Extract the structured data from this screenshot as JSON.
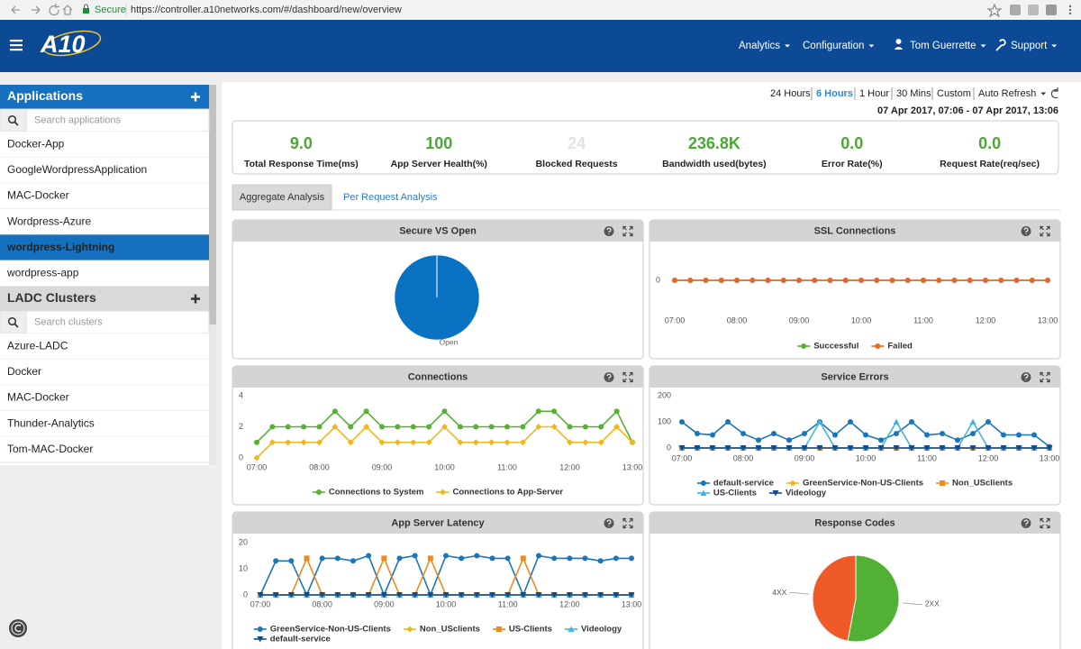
{
  "browser": {
    "secure": "Secure",
    "url": "https://controller.a10networks.com/#/dashboard/new/overview"
  },
  "nav": {
    "logo": "A10",
    "menu": [
      "Analytics",
      "Configuration",
      "Tom Guerrette",
      "Support"
    ]
  },
  "sidebar": {
    "applications": {
      "title": "Applications",
      "search": "Search applications",
      "selected": 4,
      "items": [
        "Docker-App",
        "GoogleWordpressApplication",
        "MAC-Docker",
        "Wordpress-Azure",
        "wordpress-Lightning",
        "wordpress-app"
      ]
    },
    "clusters": {
      "title": "LADC Clusters",
      "search": "Search clusters",
      "items": [
        "Azure-LADC",
        "Docker",
        "MAC-Docker",
        "Thunder-Analytics",
        "Tom-MAC-Docker"
      ]
    }
  },
  "time_range": {
    "options": [
      "24 Hours",
      "6 Hours",
      "1 Hour",
      "30 Mins",
      "Custom",
      "Auto Refresh"
    ],
    "active": 1,
    "range": "07 Apr 2017, 07:06 - 07 Apr 2017, 13:06"
  },
  "kpis": [
    {
      "value": "9.0",
      "label": "Total Response Time(ms)",
      "color": "#4aa834"
    },
    {
      "value": "100",
      "label": "App Server Health(%)",
      "color": "#4aa834"
    },
    {
      "value": "24",
      "label": "Blocked Requests",
      "color": "#e2e2e2"
    },
    {
      "value": "236.8K",
      "label": "Bandwidth used(bytes)",
      "color": "#4aa834"
    },
    {
      "value": "0.0",
      "label": "Error Rate(%)",
      "color": "#4aa834"
    },
    {
      "value": "0.0",
      "label": "Request Rate(req/sec)",
      "color": "#4aa834"
    }
  ],
  "tabs": [
    "Aggregate Analysis",
    "Per Request Analysis"
  ],
  "panels": [
    {
      "title": "Secure VS Open",
      "chart": {
        "type": "pie",
        "categories": [
          "Open"
        ],
        "values": [
          100
        ],
        "colors": [
          "#0a72c2"
        ]
      }
    },
    {
      "title": "SSL Connections",
      "chart": {
        "type": "line",
        "x": [
          7,
          7.25,
          7.5,
          7.75,
          8,
          8.25,
          8.5,
          8.75,
          9,
          9.25,
          9.5,
          9.75,
          10,
          10.25,
          10.5,
          10.75,
          11,
          11.25,
          11.5,
          11.75,
          12,
          12.25,
          12.5,
          12.75,
          13
        ],
        "xlim": [
          7,
          13
        ],
        "xticks": [
          {
            "value": 7,
            "label": "07:00"
          },
          {
            "value": 8,
            "label": "08:00"
          },
          {
            "value": 9,
            "label": "09:00"
          },
          {
            "value": 10,
            "label": "10:00"
          },
          {
            "value": 11,
            "label": "11:00"
          },
          {
            "value": 12,
            "label": "12:00"
          },
          {
            "value": 13,
            "label": "13:00"
          }
        ],
        "ylim": [
          -1,
          1
        ],
        "yticks": [
          0
        ],
        "series": [
          {
            "name": "Successful",
            "color": "#5ab035",
            "marker": "circle",
            "values": [
              0,
              0,
              0,
              0,
              0,
              0,
              0,
              0,
              0,
              0,
              0,
              0,
              0,
              0,
              0,
              0,
              0,
              0,
              0,
              0,
              0,
              0,
              0,
              0,
              0
            ]
          },
          {
            "name": "Failed",
            "color": "#e8662e",
            "marker": "circle",
            "values": [
              0,
              0,
              0,
              0,
              0,
              0,
              0,
              0,
              0,
              0,
              0,
              0,
              0,
              0,
              0,
              0,
              0,
              0,
              0,
              0,
              0,
              0,
              0,
              0,
              0
            ]
          }
        ]
      }
    },
    {
      "title": "Connections",
      "chart": {
        "type": "line",
        "x": [
          7,
          7.25,
          7.5,
          7.75,
          8,
          8.25,
          8.5,
          8.75,
          9,
          9.25,
          9.5,
          9.75,
          10,
          10.25,
          10.5,
          10.75,
          11,
          11.25,
          11.5,
          11.75,
          12,
          12.25,
          12.5,
          12.75,
          13
        ],
        "xlim": [
          7,
          13
        ],
        "xticks": [
          {
            "value": 7,
            "label": "07:00"
          },
          {
            "value": 8,
            "label": "08:00"
          },
          {
            "value": 9,
            "label": "09:00"
          },
          {
            "value": 10,
            "label": "10:00"
          },
          {
            "value": 11,
            "label": "11:00"
          },
          {
            "value": 12,
            "label": "12:00"
          },
          {
            "value": 13,
            "label": "13:00"
          }
        ],
        "ylim": [
          0,
          4
        ],
        "yticks": [
          0,
          2,
          4
        ],
        "series": [
          {
            "name": "Connections to System",
            "color": "#5ab035",
            "marker": "circle",
            "values": [
              1,
              2,
              2,
              2,
              2,
              3,
              2,
              3,
              2,
              2,
              2,
              2,
              3,
              2,
              2,
              2,
              2,
              2,
              3,
              3,
              2,
              2,
              2,
              3,
              1
            ]
          },
          {
            "name": "Connections to App-Server",
            "color": "#f2b51c",
            "marker": "diamond",
            "values": [
              0,
              1,
              1,
              1,
              1,
              2,
              1,
              2,
              1,
              1,
              1,
              1,
              2,
              1,
              1,
              1,
              1,
              1,
              2,
              2,
              1,
              1,
              1,
              2,
              1
            ]
          }
        ]
      }
    },
    {
      "title": "Service Errors",
      "chart": {
        "type": "line",
        "x": [
          7,
          7.25,
          7.5,
          7.75,
          8,
          8.25,
          8.5,
          8.75,
          9,
          9.25,
          9.5,
          9.75,
          10,
          10.25,
          10.5,
          10.75,
          11,
          11.25,
          11.5,
          11.75,
          12,
          12.25,
          12.5,
          12.75,
          13
        ],
        "xlim": [
          7,
          13
        ],
        "xticks": [
          {
            "value": 7,
            "label": "07:00"
          },
          {
            "value": 8,
            "label": "08:00"
          },
          {
            "value": 9,
            "label": "09:00"
          },
          {
            "value": 10,
            "label": "10:00"
          },
          {
            "value": 11,
            "label": "11:00"
          },
          {
            "value": 12,
            "label": "12:00"
          },
          {
            "value": 13,
            "label": "13:00"
          }
        ],
        "ylim": [
          0,
          200
        ],
        "yticks": [
          0,
          100,
          200
        ],
        "series": [
          {
            "name": "default-service",
            "color": "#1b75bb",
            "marker": "circle",
            "values": [
              100,
              55,
              50,
              100,
              55,
              30,
              55,
              30,
              55,
              100,
              50,
              100,
              50,
              30,
              55,
              100,
              50,
              55,
              30,
              55,
              100,
              50,
              50,
              50,
              5
            ]
          },
          {
            "name": "GreenService-Non-US-Clients",
            "color": "#f2b51c",
            "marker": "diamond",
            "values": [
              0,
              0,
              0,
              0,
              0,
              0,
              0,
              0,
              0,
              0,
              0,
              0,
              0,
              0,
              0,
              0,
              0,
              0,
              0,
              0,
              0,
              0,
              0,
              0,
              0
            ]
          },
          {
            "name": "Non_USclients",
            "color": "#f08a1c",
            "marker": "square",
            "values": [
              0,
              0,
              0,
              0,
              0,
              0,
              0,
              0,
              0,
              0,
              0,
              0,
              0,
              0,
              0,
              0,
              0,
              0,
              0,
              0,
              0,
              0,
              0,
              0,
              0
            ]
          },
          {
            "name": "US-Clients",
            "color": "#45b4e0",
            "marker": "triangle",
            "values": [
              0,
              0,
              0,
              0,
              0,
              0,
              0,
              0,
              0,
              100,
              0,
              0,
              0,
              0,
              100,
              0,
              0,
              0,
              0,
              100,
              0,
              0,
              0,
              0,
              0
            ]
          },
          {
            "name": "Videology",
            "color": "#134a8c",
            "marker": "triangle-down",
            "values": [
              0,
              0,
              0,
              0,
              0,
              0,
              0,
              0,
              0,
              0,
              0,
              0,
              0,
              0,
              0,
              0,
              0,
              0,
              0,
              0,
              0,
              0,
              0,
              0,
              0
            ]
          }
        ]
      }
    },
    {
      "title": "App Server Latency",
      "chart": {
        "type": "line",
        "x": [
          7,
          7.25,
          7.5,
          7.75,
          8,
          8.25,
          8.5,
          8.75,
          9,
          9.25,
          9.5,
          9.75,
          10,
          10.25,
          10.5,
          10.75,
          11,
          11.25,
          11.5,
          11.75,
          12,
          12.25,
          12.5,
          12.75,
          13
        ],
        "xlim": [
          7,
          13
        ],
        "xticks": [
          {
            "value": 7,
            "label": "07:00"
          },
          {
            "value": 8,
            "label": "08:00"
          },
          {
            "value": 9,
            "label": "09:00"
          },
          {
            "value": 10,
            "label": "10:00"
          },
          {
            "value": 11,
            "label": "11:00"
          },
          {
            "value": 12,
            "label": "12:00"
          },
          {
            "value": 13,
            "label": "13:00"
          }
        ],
        "ylim": [
          0,
          20
        ],
        "yticks": [
          0,
          10,
          20
        ],
        "series": [
          {
            "name": "GreenService-Non-US-Clients",
            "color": "#1b75bb",
            "marker": "circle",
            "values": [
              0,
              13,
              13,
              0,
              14,
              14,
              13,
              15,
              0,
              14,
              15,
              0,
              15,
              14,
              15,
              14,
              14,
              0,
              15,
              14,
              14,
              14,
              13,
              14,
              14
            ]
          },
          {
            "name": "Non_USclients",
            "color": "#f2b51c",
            "marker": "diamond",
            "values": [
              0,
              0,
              0,
              0,
              0,
              0,
              0,
              0,
              0,
              0,
              0,
              0,
              0,
              0,
              0,
              0,
              0,
              0,
              0,
              0,
              0,
              0,
              0,
              0,
              0
            ]
          },
          {
            "name": "US-Clients",
            "color": "#f08a1c",
            "marker": "square",
            "values": [
              0,
              0,
              0,
              14,
              0,
              0,
              0,
              0,
              14,
              0,
              0,
              14,
              0,
              0,
              0,
              0,
              0,
              14,
              0,
              0,
              0,
              0,
              0,
              0,
              0
            ]
          },
          {
            "name": "Videology",
            "color": "#45b4e0",
            "marker": "triangle",
            "values": [
              0,
              0,
              0,
              0,
              0,
              0,
              0,
              0,
              0,
              0,
              0,
              0,
              0,
              0,
              0,
              0,
              0,
              0,
              0,
              0,
              0,
              0,
              0,
              0,
              0
            ]
          },
          {
            "name": "default-service",
            "color": "#134a8c",
            "marker": "triangle-down",
            "values": [
              0,
              0,
              0,
              0,
              0,
              0,
              0,
              0,
              0,
              0,
              0,
              0,
              0,
              0,
              0,
              0,
              0,
              0,
              0,
              0,
              0,
              0,
              0,
              0,
              0
            ]
          }
        ]
      }
    },
    {
      "title": "Response Codes",
      "chart": {
        "type": "pie",
        "categories": [
          "2XX",
          "4XX"
        ],
        "values": [
          53,
          47
        ],
        "colors": [
          "#52b035",
          "#f05a28"
        ]
      }
    }
  ]
}
